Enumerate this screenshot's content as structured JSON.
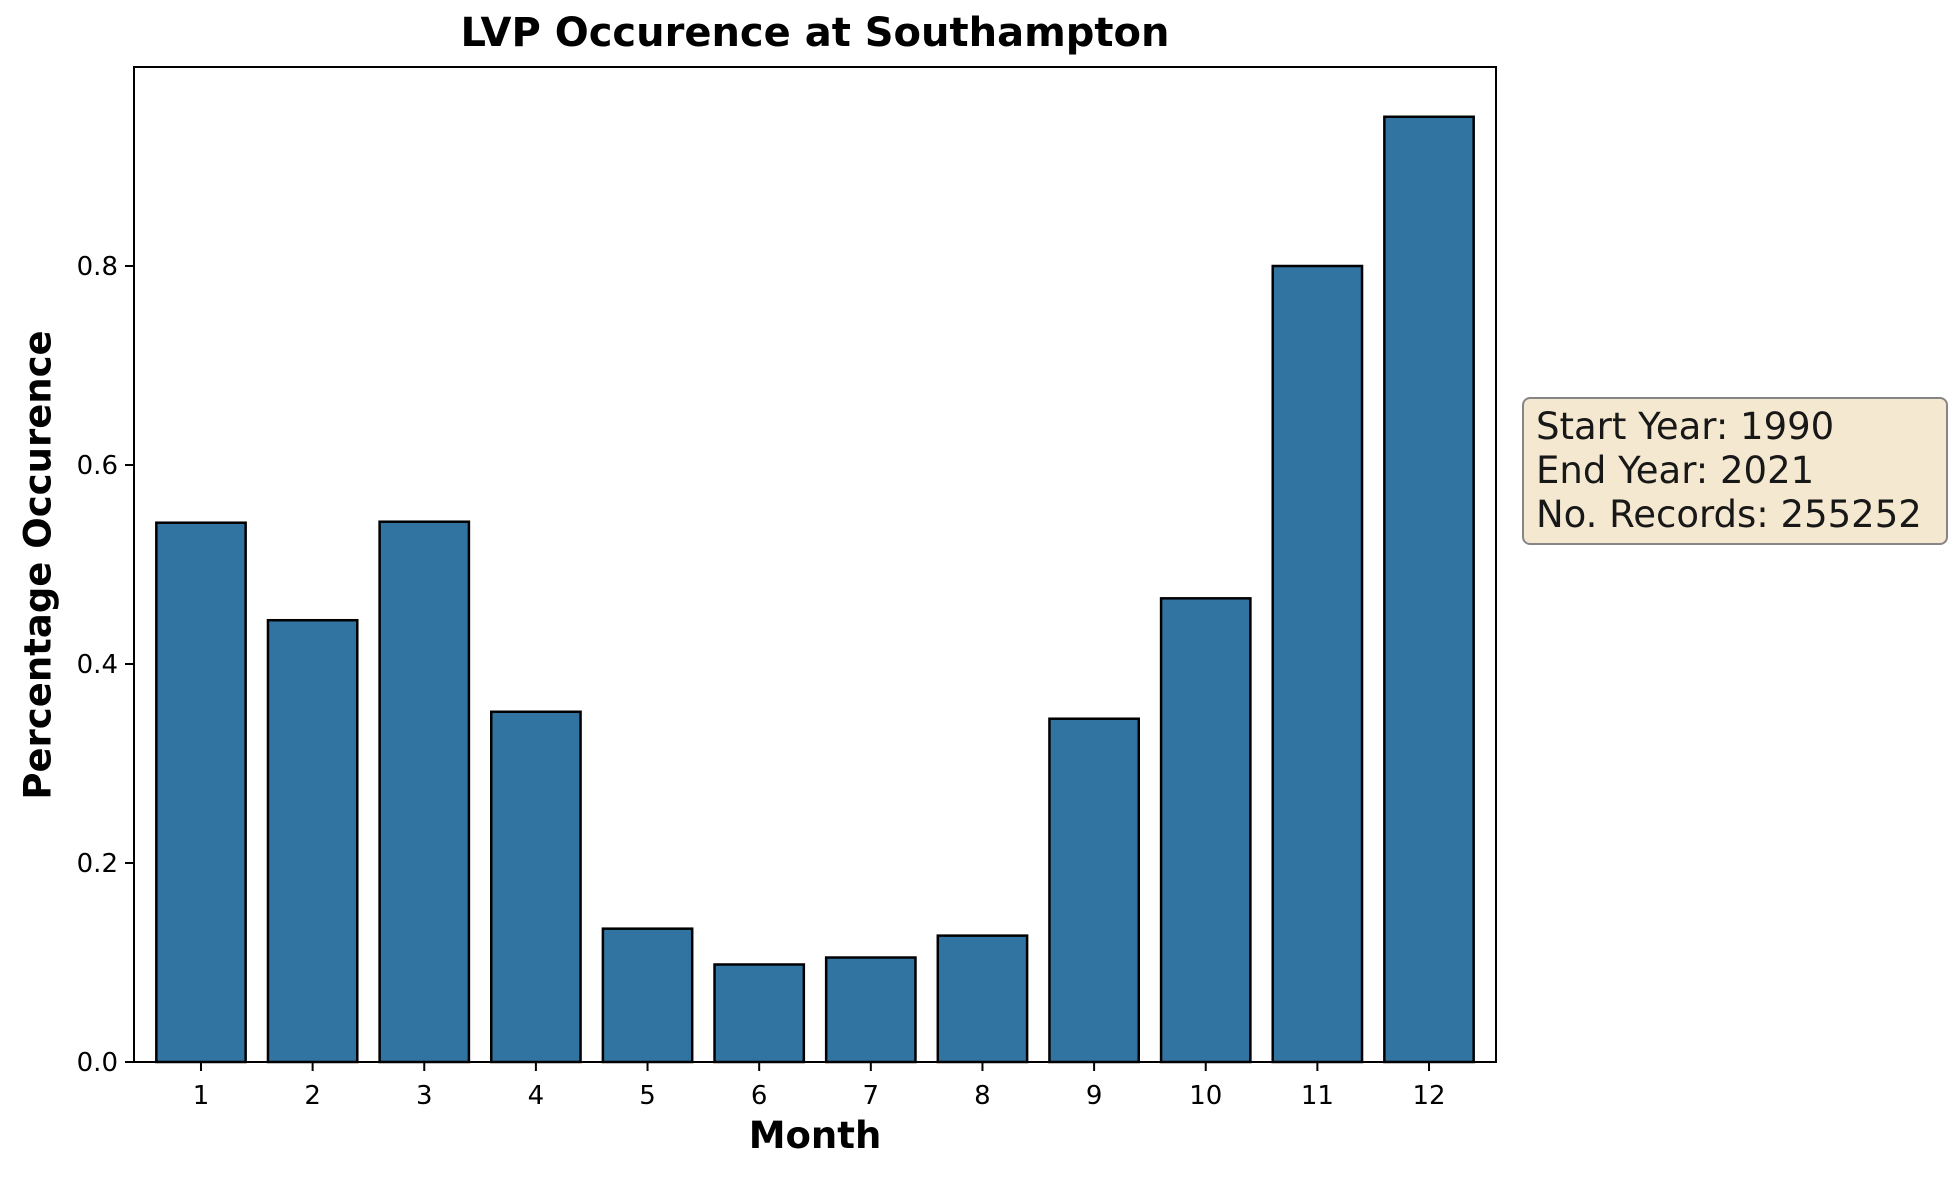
{
  "chart_data": {
    "type": "bar",
    "title": "LVP Occurence at Southampton",
    "xlabel": "Month",
    "ylabel": "Percentage Occurence",
    "categories": [
      "1",
      "2",
      "3",
      "4",
      "5",
      "6",
      "7",
      "8",
      "9",
      "10",
      "11",
      "12"
    ],
    "values": [
      0.542,
      0.444,
      0.543,
      0.352,
      0.134,
      0.098,
      0.105,
      0.127,
      0.345,
      0.466,
      0.8,
      0.95
    ],
    "ylim": [
      0,
      1.0
    ],
    "yticks": [
      0.0,
      0.2,
      0.4,
      0.6,
      0.8
    ],
    "ytick_labels": [
      "0.0",
      "0.2",
      "0.4",
      "0.6",
      "0.8"
    ],
    "grid": false,
    "bar_color": "#3274a1",
    "edge_color": "#000000"
  },
  "info_box": {
    "lines": [
      "Start Year: 1990",
      "End Year: 2021",
      "No. Records: 255252"
    ],
    "background": "#f5e6cc"
  }
}
